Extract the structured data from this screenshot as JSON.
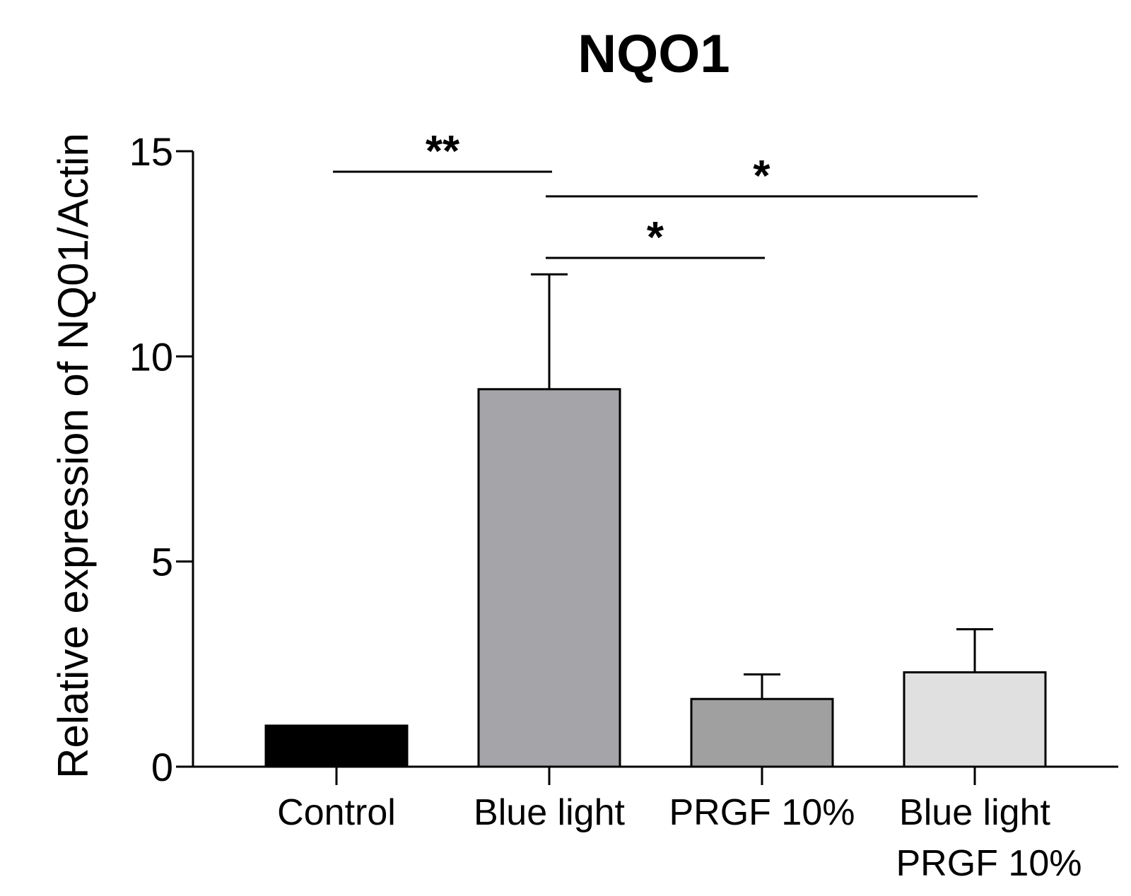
{
  "chart_data": {
    "type": "bar",
    "title": "NQO1",
    "ylabel": "Relative expression of NQ01/Actin",
    "xlabel": "",
    "ylim": [
      0,
      15
    ],
    "yticks": [
      "0",
      "5",
      "10",
      "15"
    ],
    "categories": [
      [
        "Control"
      ],
      [
        "Blue light"
      ],
      [
        "PRGF 10%"
      ],
      [
        "Blue light",
        "PRGF 10%"
      ]
    ],
    "values": [
      1.0,
      9.2,
      1.65,
      2.3
    ],
    "errors": [
      0,
      2.8,
      0.6,
      1.05
    ],
    "colors": [
      "#000000",
      "#a5a4a8",
      "#a0a0a0",
      "#e0e0e0"
    ],
    "significance": [
      {
        "from": 0,
        "to": 1,
        "label": "**",
        "y": 14.5
      },
      {
        "from": 1,
        "to": 3,
        "label": "*",
        "y": 13.9
      },
      {
        "from": 1,
        "to": 2,
        "label": "*",
        "y": 12.4
      }
    ],
    "grid": false,
    "legend": "none"
  }
}
